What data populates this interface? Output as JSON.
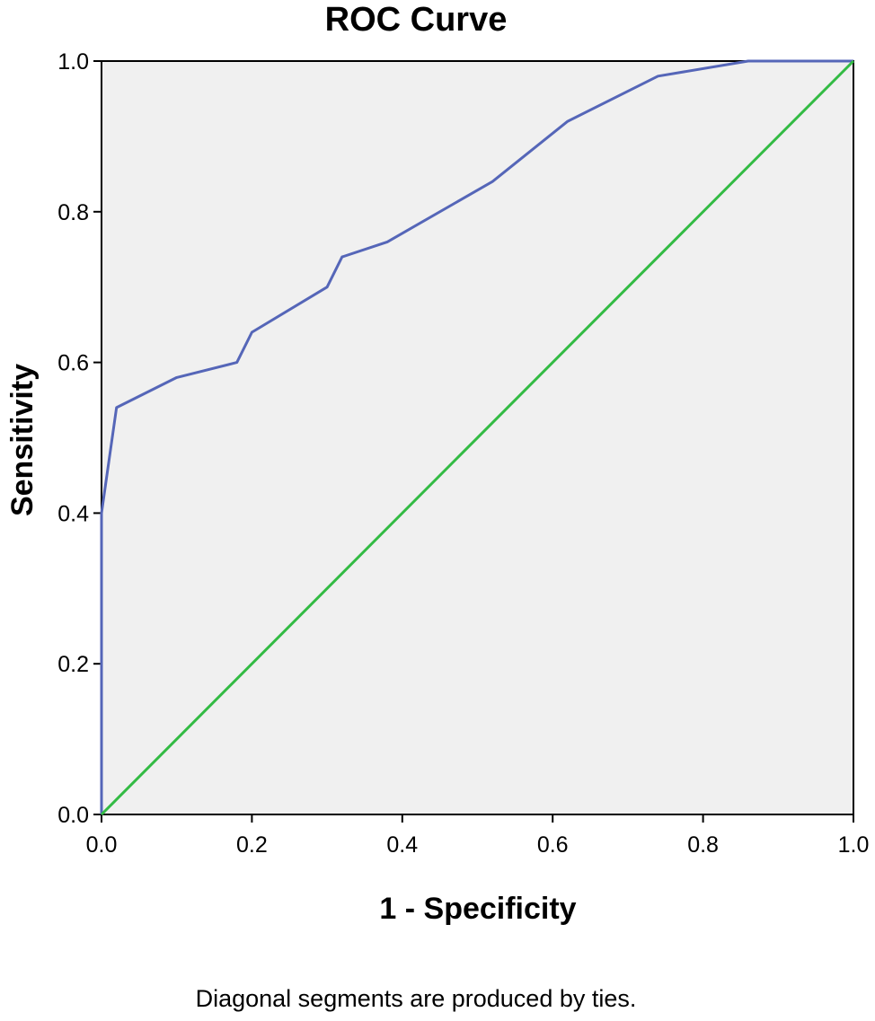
{
  "chart_data": {
    "type": "line",
    "title": "ROC Curve",
    "xlabel": "1 - Specificity",
    "ylabel": "Sensitivity",
    "xlim": [
      0,
      1
    ],
    "ylim": [
      0,
      1
    ],
    "x_ticks": [
      "0.0",
      "0.2",
      "0.4",
      "0.6",
      "0.8",
      "1.0"
    ],
    "y_ticks": [
      "0.0",
      "0.2",
      "0.4",
      "0.6",
      "0.8",
      "1.0"
    ],
    "grid": false,
    "legend": "none",
    "plot_background": "#f0f0f0",
    "footnote": "Diagonal segments are produced by ties.",
    "series": [
      {
        "color": "#5566b8",
        "points": [
          [
            0.0,
            0.0
          ],
          [
            0.0,
            0.4
          ],
          [
            0.02,
            0.54
          ],
          [
            0.1,
            0.58
          ],
          [
            0.18,
            0.6
          ],
          [
            0.2,
            0.64
          ],
          [
            0.3,
            0.7
          ],
          [
            0.32,
            0.74
          ],
          [
            0.38,
            0.76
          ],
          [
            0.52,
            0.84
          ],
          [
            0.62,
            0.92
          ],
          [
            0.74,
            0.98
          ],
          [
            0.86,
            1.0
          ],
          [
            1.0,
            1.0
          ]
        ]
      },
      {
        "color": "#33bb44",
        "points": [
          [
            0.0,
            0.0
          ],
          [
            1.0,
            1.0
          ]
        ]
      }
    ]
  }
}
